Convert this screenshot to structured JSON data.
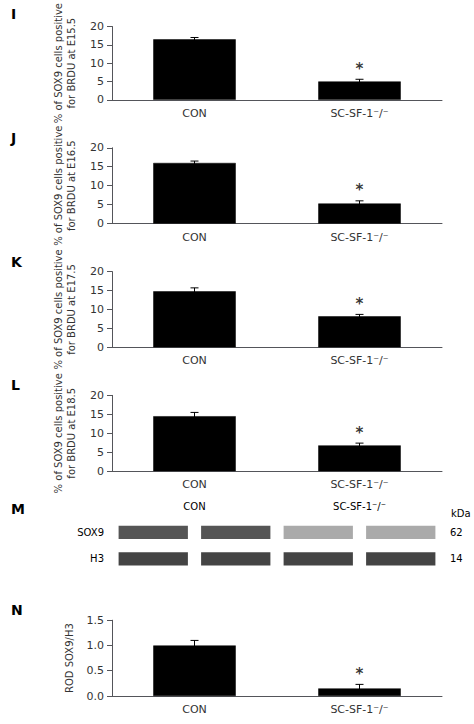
{
  "chart_data": [
    {
      "type": "bar",
      "title": "I",
      "ylabel": "% of SOX9 cells positive\nfor BRDU at E15.5",
      "categories": [
        "CON",
        "SC-SF-1⁻/⁻"
      ],
      "values": [
        16.5,
        5.0
      ],
      "errors": [
        0.5,
        0.6
      ],
      "color": "#000000",
      "ylim": [
        0,
        20
      ],
      "yticks": [
        0,
        5,
        10,
        15,
        20
      ],
      "grid": false,
      "annotations": [
        {
          "text": "*",
          "category": "SC-SF-1⁻/⁻"
        }
      ]
    },
    {
      "type": "bar",
      "title": "J",
      "ylabel": "% of SOX9 cells positive\nfor BRDU at E16.5",
      "categories": [
        "CON",
        "SC-SF-1⁻/⁻"
      ],
      "values": [
        16.0,
        5.3
      ],
      "errors": [
        0.5,
        0.7
      ],
      "color": "#000000",
      "ylim": [
        0,
        20
      ],
      "yticks": [
        0,
        5,
        10,
        15,
        20
      ],
      "grid": false,
      "annotations": [
        {
          "text": "*",
          "category": "SC-SF-1⁻/⁻"
        }
      ]
    },
    {
      "type": "bar",
      "title": "K",
      "ylabel": "% of SOX9 cells positive\nfor BRDU at E17.5",
      "categories": [
        "CON",
        "SC-SF-1⁻/⁻"
      ],
      "values": [
        14.8,
        8.2
      ],
      "errors": [
        0.9,
        0.5
      ],
      "color": "#000000",
      "ylim": [
        0,
        20
      ],
      "yticks": [
        0,
        5,
        10,
        15,
        20
      ],
      "grid": false,
      "annotations": [
        {
          "text": "*",
          "category": "SC-SF-1⁻/⁻"
        }
      ]
    },
    {
      "type": "bar",
      "title": "L",
      "ylabel": "% of SOX9 cells positive\nfor BRDU at E18.5",
      "categories": [
        "CON",
        "SC-SF-1⁻/⁻"
      ],
      "values": [
        14.5,
        6.8
      ],
      "errors": [
        1.0,
        0.6
      ],
      "color": "#000000",
      "ylim": [
        0,
        20
      ],
      "yticks": [
        0,
        5,
        10,
        15,
        20
      ],
      "grid": false,
      "annotations": [
        {
          "text": "*",
          "category": "SC-SF-1⁻/⁻"
        }
      ]
    },
    {
      "type": "blot",
      "title": "M",
      "categories": [
        "CON",
        "SC-SF-1⁻/⁻"
      ],
      "series": [
        {
          "name": "SOX9",
          "colors": [
            "#555555",
            "#555555",
            "#aaaaaa",
            "#aaaaaa"
          ]
        },
        {
          "name": "H3",
          "colors": [
            "#444444",
            "#444444",
            "#444444",
            "#444444"
          ]
        }
      ],
      "annotations": [
        {
          "text": "kDa"
        },
        {
          "text": "62",
          "row": "SOX9"
        },
        {
          "text": "14",
          "row": "H3"
        }
      ]
    },
    {
      "type": "bar",
      "title": "N",
      "ylabel": "ROD SOX9/H3",
      "categories": [
        "CON",
        "SC-SF-1⁻/⁻"
      ],
      "values": [
        1.0,
        0.15
      ],
      "errors": [
        0.1,
        0.08
      ],
      "color": "#000000",
      "ylim": [
        0,
        1.5
      ],
      "yticks": [
        {
          "value": 0,
          "label": "0.0"
        },
        0.5,
        {
          "value": 1.0,
          "label": "1.0"
        },
        1.5
      ],
      "grid": false,
      "annotations": [
        {
          "text": "*",
          "category": "SC-SF-1⁻/⁻"
        }
      ]
    }
  ]
}
